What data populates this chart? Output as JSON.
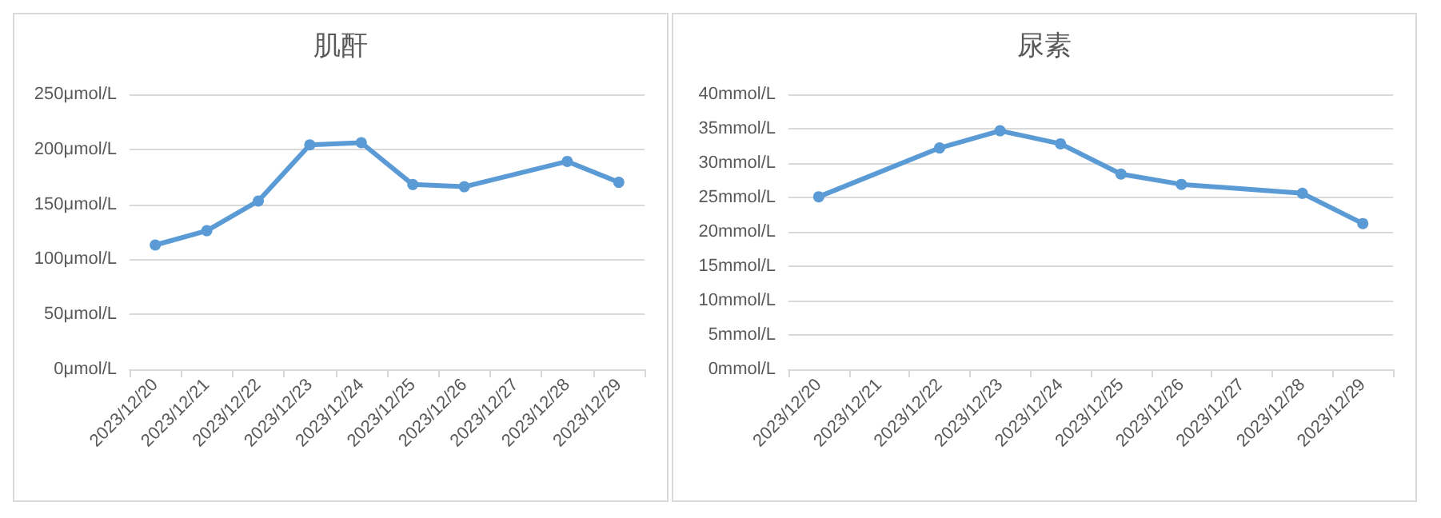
{
  "chart_data": [
    {
      "type": "line",
      "title": "肌酐",
      "categories": [
        "2023/12/20",
        "2023/12/21",
        "2023/12/22",
        "2023/12/23",
        "2023/12/24",
        "2023/12/25",
        "2023/12/26",
        "2023/12/27",
        "2023/12/28",
        "2023/12/29"
      ],
      "series": [
        {
          "color": "#5b9bd5",
          "values": [
            113,
            126,
            153,
            204,
            206,
            168,
            166,
            null,
            189,
            170
          ]
        }
      ],
      "ylim": [
        0,
        250
      ],
      "yticks": [
        {
          "value": 0,
          "label": "0μmol/L"
        },
        {
          "value": 50,
          "label": "50μmol/L"
        },
        {
          "value": 100,
          "label": "100μmol/L"
        },
        {
          "value": 150,
          "label": "150μmol/L"
        },
        {
          "value": 200,
          "label": "200μmol/L"
        },
        {
          "value": 250,
          "label": "250μmol/L"
        }
      ],
      "grid": "y",
      "marker": "circle",
      "line_style": "solid"
    },
    {
      "type": "line",
      "title": "尿素",
      "categories": [
        "2023/12/20",
        "2023/12/21",
        "2023/12/22",
        "2023/12/23",
        "2023/12/24",
        "2023/12/25",
        "2023/12/26",
        "2023/12/27",
        "2023/12/28",
        "2023/12/29"
      ],
      "series": [
        {
          "color": "#5b9bd5",
          "values": [
            25.1,
            null,
            32.2,
            34.7,
            32.8,
            28.4,
            26.9,
            null,
            25.6,
            21.2
          ]
        }
      ],
      "ylim": [
        0,
        40
      ],
      "yticks": [
        {
          "value": 0,
          "label": "0mmol/L"
        },
        {
          "value": 5,
          "label": "5mmol/L"
        },
        {
          "value": 10,
          "label": "10mmol/L"
        },
        {
          "value": 15,
          "label": "15mmol/L"
        },
        {
          "value": 20,
          "label": "20mmol/L"
        },
        {
          "value": 25,
          "label": "25mmol/L"
        },
        {
          "value": 30,
          "label": "30mmol/L"
        },
        {
          "value": 35,
          "label": "35mmol/L"
        },
        {
          "value": 40,
          "label": "40mmol/L"
        }
      ],
      "grid": "y",
      "marker": "circle",
      "line_style": "solid"
    }
  ]
}
